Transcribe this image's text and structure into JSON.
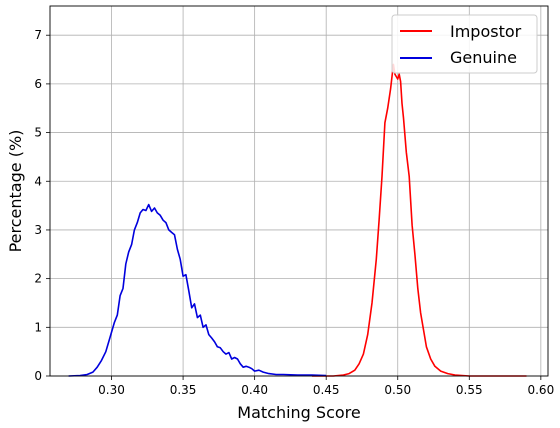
{
  "chart_data": {
    "type": "line",
    "xlabel": "Matching Score",
    "ylabel": "Percentage (%)",
    "xlim": [
      0.257,
      0.605
    ],
    "ylim": [
      0,
      7.6
    ],
    "xticks": [
      0.3,
      0.35,
      0.4,
      0.45,
      0.5,
      0.55,
      0.6
    ],
    "xtick_labels": [
      "0.30",
      "0.35",
      "0.40",
      "0.45",
      "0.50",
      "0.55",
      "0.60"
    ],
    "yticks": [
      0,
      1,
      2,
      3,
      4,
      5,
      6,
      7
    ],
    "ytick_labels": [
      "0",
      "1",
      "2",
      "3",
      "4",
      "5",
      "6",
      "7"
    ],
    "grid": true,
    "legend_position": "top-right",
    "series": [
      {
        "name": "Impostor",
        "color": "#ff0000",
        "x": [
          0.44,
          0.455,
          0.462,
          0.466,
          0.47,
          0.473,
          0.476,
          0.479,
          0.482,
          0.485,
          0.487,
          0.489,
          0.491,
          0.493,
          0.495,
          0.497,
          0.498,
          0.499,
          0.5,
          0.501,
          0.502,
          0.503,
          0.504,
          0.506,
          0.508,
          0.51,
          0.512,
          0.514,
          0.516,
          0.518,
          0.52,
          0.523,
          0.526,
          0.53,
          0.535,
          0.54,
          0.545,
          0.55,
          0.56,
          0.57,
          0.59
        ],
        "y": [
          0.0,
          0.0,
          0.02,
          0.05,
          0.12,
          0.25,
          0.45,
          0.85,
          1.5,
          2.4,
          3.2,
          4.1,
          5.2,
          5.5,
          5.9,
          6.4,
          6.2,
          6.15,
          6.1,
          6.2,
          6.05,
          5.6,
          5.3,
          4.6,
          4.1,
          3.1,
          2.5,
          1.8,
          1.3,
          0.95,
          0.6,
          0.35,
          0.2,
          0.1,
          0.05,
          0.02,
          0.01,
          0.0,
          0.0,
          0.0,
          0.0
        ]
      },
      {
        "name": "Genuine",
        "color": "#0000dd",
        "x": [
          0.27,
          0.278,
          0.283,
          0.287,
          0.29,
          0.293,
          0.296,
          0.299,
          0.302,
          0.304,
          0.306,
          0.308,
          0.31,
          0.312,
          0.314,
          0.316,
          0.318,
          0.32,
          0.322,
          0.324,
          0.326,
          0.328,
          0.33,
          0.332,
          0.334,
          0.336,
          0.338,
          0.34,
          0.342,
          0.344,
          0.346,
          0.348,
          0.35,
          0.352,
          0.354,
          0.356,
          0.358,
          0.36,
          0.362,
          0.364,
          0.366,
          0.368,
          0.37,
          0.372,
          0.374,
          0.376,
          0.378,
          0.38,
          0.382,
          0.384,
          0.386,
          0.388,
          0.39,
          0.392,
          0.394,
          0.396,
          0.398,
          0.4,
          0.403,
          0.406,
          0.41,
          0.415,
          0.42,
          0.43,
          0.44,
          0.45
        ],
        "y": [
          0.0,
          0.01,
          0.03,
          0.08,
          0.18,
          0.32,
          0.5,
          0.8,
          1.1,
          1.25,
          1.65,
          1.8,
          2.3,
          2.55,
          2.7,
          3.0,
          3.15,
          3.35,
          3.42,
          3.4,
          3.52,
          3.38,
          3.45,
          3.35,
          3.3,
          3.2,
          3.15,
          3.0,
          2.95,
          2.9,
          2.6,
          2.4,
          2.05,
          2.08,
          1.75,
          1.4,
          1.48,
          1.2,
          1.25,
          1.0,
          1.05,
          0.85,
          0.78,
          0.7,
          0.6,
          0.58,
          0.5,
          0.45,
          0.48,
          0.35,
          0.38,
          0.35,
          0.25,
          0.18,
          0.2,
          0.18,
          0.15,
          0.1,
          0.12,
          0.08,
          0.05,
          0.03,
          0.03,
          0.02,
          0.02,
          0.01
        ]
      }
    ]
  }
}
